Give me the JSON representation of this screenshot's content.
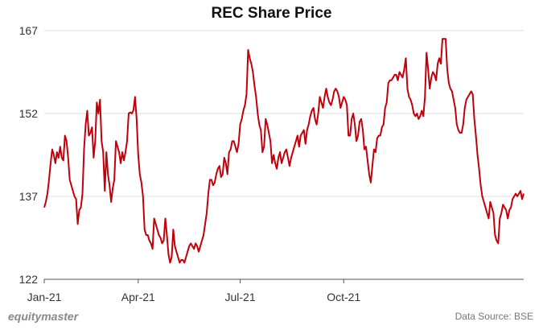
{
  "chart_data": {
    "type": "line",
    "title": "REC Share Price",
    "xlabel": "",
    "ylabel": "",
    "ylim": [
      122,
      167
    ],
    "yticks": [
      122,
      137,
      152,
      167
    ],
    "xticks": [
      {
        "label": "Jan-21",
        "x": 0
      },
      {
        "label": "Apr-21",
        "x": 59
      },
      {
        "label": "Jul-21",
        "x": 123
      },
      {
        "label": "Oct-21",
        "x": 188
      }
    ],
    "grid": true,
    "colors": {
      "line": "#c0000b",
      "grid": "#dddddd",
      "axis": "#555555"
    },
    "series": [
      {
        "values": [
          135,
          136,
          137.5,
          140,
          143,
          145.5,
          144.5,
          143,
          145,
          144,
          146,
          144,
          143.5,
          148,
          147,
          144,
          140,
          139,
          138,
          137,
          136.5,
          132,
          134.5,
          135,
          137.5,
          145.5,
          150,
          152.5,
          148,
          148.5,
          149.5,
          144,
          147,
          154,
          152,
          154.5,
          147,
          145,
          138,
          145,
          141,
          139,
          136,
          138.5,
          140,
          147,
          146,
          145,
          143,
          145,
          143.5,
          145,
          147,
          152,
          152.2,
          152,
          152.6,
          155,
          151,
          144.5,
          141,
          139.5,
          137,
          131,
          130,
          130,
          129,
          128.5,
          127.5,
          133,
          132,
          131,
          130,
          129.5,
          128.5,
          129,
          133,
          130,
          126.5,
          125,
          126,
          131,
          128,
          127,
          126,
          125,
          125.5,
          125.5,
          125,
          126,
          127,
          128,
          128.5,
          128,
          127.5,
          128.5,
          128,
          127,
          128,
          129,
          130,
          132,
          134,
          137.5,
          140,
          140,
          139,
          139.5,
          141,
          142,
          142.5,
          140.5,
          141,
          144,
          143,
          141,
          145,
          145.5,
          147,
          147,
          146,
          145,
          146.5,
          150,
          151,
          152.5,
          153.5,
          155.5,
          163.5,
          162,
          161,
          159.5,
          157,
          155,
          152,
          150,
          149,
          145,
          146,
          151,
          150,
          148.5,
          147,
          143,
          144.5,
          143,
          142,
          144,
          145,
          143,
          144,
          145,
          145.5,
          144,
          142.5,
          144,
          145,
          146,
          147,
          148,
          146,
          148,
          148.5,
          149,
          146.5,
          149,
          150,
          151.5,
          152.5,
          153,
          151,
          150,
          152,
          155,
          154,
          153,
          155,
          156.5,
          155,
          154,
          153.5,
          154.5,
          156,
          156.5,
          156,
          155,
          153,
          154,
          155,
          154.5,
          153.5,
          148,
          148,
          151,
          152,
          150,
          147,
          148,
          150.5,
          151,
          149,
          145.5,
          146,
          143.5,
          141,
          139.5,
          142.5,
          145.5,
          145,
          147.5,
          148,
          148,
          149.5,
          150,
          153,
          154,
          157.5,
          158,
          158,
          158.5,
          159,
          159,
          158,
          159.5,
          159,
          158.5,
          160,
          162,
          156.5,
          155,
          154.5,
          153.5,
          152,
          151.5,
          152,
          151,
          151.5,
          152.5,
          151.5,
          155,
          163,
          160,
          156.5,
          158.5,
          159.5,
          159,
          158,
          161,
          162,
          161,
          165.5,
          165.5,
          165.5,
          160,
          157.5,
          156.5,
          156,
          154.5,
          153,
          150,
          149,
          148.5,
          148.5,
          150,
          153,
          154.5,
          155,
          155.5,
          156,
          155.5,
          151,
          148,
          144.5,
          142,
          139,
          137,
          136,
          135,
          134,
          133,
          136,
          135,
          134,
          130,
          129,
          128.5,
          133,
          134,
          135.5,
          135,
          134.5,
          133,
          134.5,
          135,
          136.5,
          137,
          137.5,
          137,
          137.5,
          138,
          136.5,
          137.5
        ]
      }
    ]
  },
  "brand": "equitymaster",
  "source": "Data Source: BSE"
}
